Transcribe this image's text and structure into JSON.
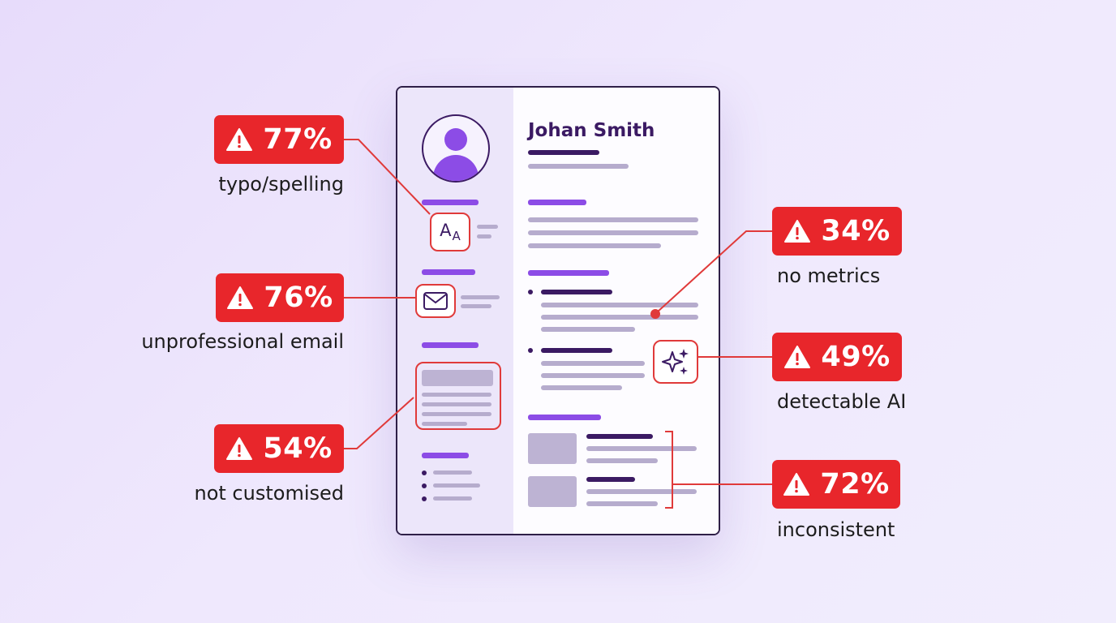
{
  "resume": {
    "name": "Johan Smith"
  },
  "typo_icon": {
    "big_letter": "A",
    "small_letter": "A"
  },
  "callouts": [
    {
      "id": "typo",
      "percent": "77%",
      "label": "typo/spelling",
      "icon": "warning-triangle-icon"
    },
    {
      "id": "email",
      "percent": "76%",
      "label": "unprofessional email",
      "icon": "warning-triangle-icon"
    },
    {
      "id": "custom",
      "percent": "54%",
      "label": "not customised",
      "icon": "warning-triangle-icon"
    },
    {
      "id": "metrics",
      "percent": "34%",
      "label": "no metrics",
      "icon": "warning-triangle-icon"
    },
    {
      "id": "ai",
      "percent": "49%",
      "label": "detectable AI",
      "icon": "warning-triangle-icon"
    },
    {
      "id": "inconsistent",
      "percent": "72%",
      "label": "inconsistent",
      "icon": "warning-triangle-icon"
    }
  ],
  "colors": {
    "alert": "#e8262b",
    "connector": "#e03a3a",
    "accent": "#8c4ce6",
    "dark": "#3b1a63",
    "placeholder": "#b6accd"
  }
}
